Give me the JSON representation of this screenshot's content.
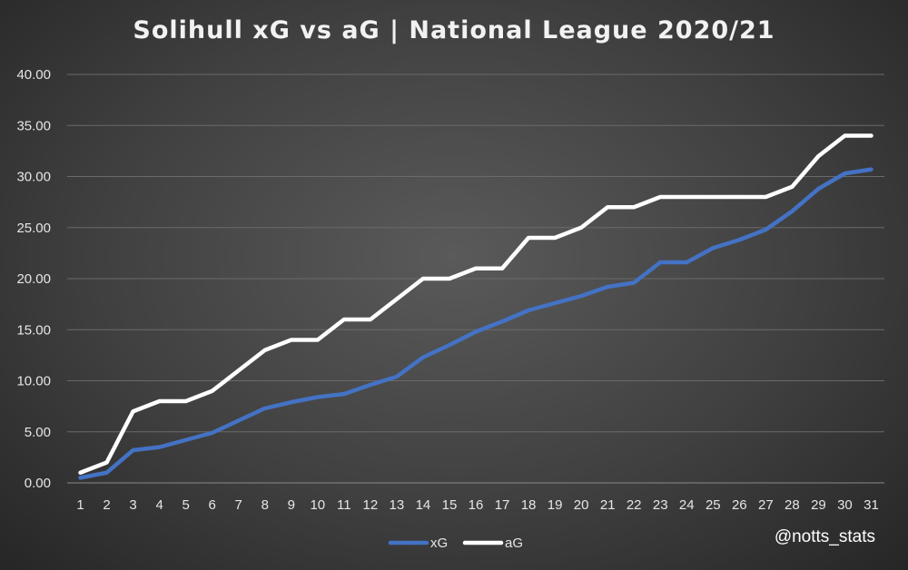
{
  "chart_data": {
    "type": "line",
    "title": "Solihull xG vs aG | National League 2020/21",
    "xlabel": "",
    "ylabel": "",
    "x": [
      1,
      2,
      3,
      4,
      5,
      6,
      7,
      8,
      9,
      10,
      11,
      12,
      13,
      14,
      15,
      16,
      17,
      18,
      19,
      20,
      21,
      22,
      23,
      24,
      25,
      26,
      27,
      28,
      29,
      30,
      31
    ],
    "ylim": [
      0,
      40
    ],
    "yticks": [
      "0.00",
      "5.00",
      "10.00",
      "15.00",
      "20.00",
      "25.00",
      "30.00",
      "35.00",
      "40.00"
    ],
    "grid": true,
    "legend_position": "bottom",
    "series": [
      {
        "name": "xG",
        "color": "#4472C4",
        "values": [
          0.5,
          1.0,
          3.2,
          3.5,
          4.2,
          4.9,
          6.1,
          7.3,
          7.9,
          8.4,
          8.7,
          9.6,
          10.4,
          12.3,
          13.5,
          14.8,
          15.8,
          16.9,
          17.6,
          18.3,
          19.2,
          19.6,
          21.6,
          21.6,
          23.0,
          23.8,
          24.8,
          26.6,
          28.8,
          30.3,
          30.7
        ]
      },
      {
        "name": "aG",
        "color": "#FFFFFF",
        "values": [
          1,
          2,
          7,
          8,
          8,
          9,
          11,
          13,
          14,
          14,
          16,
          16,
          18,
          20,
          20,
          21,
          21,
          24,
          24,
          25,
          27,
          27,
          28,
          28,
          28,
          28,
          28,
          29,
          32,
          34,
          34
        ]
      }
    ],
    "credit": "@notts_stats"
  }
}
